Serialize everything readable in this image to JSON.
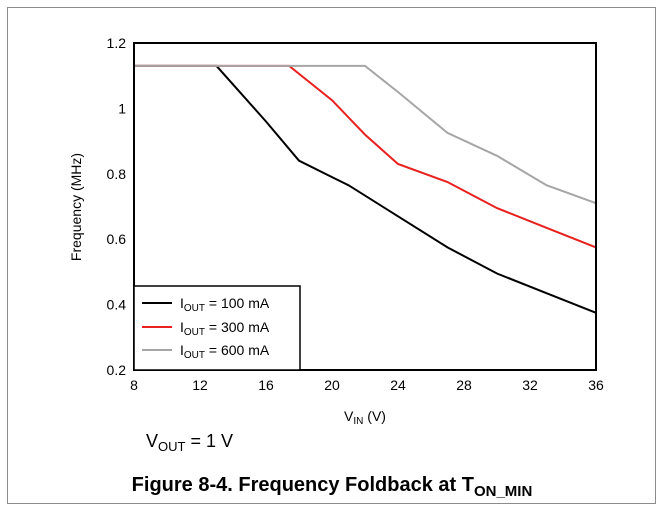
{
  "chart_data": {
    "type": "line",
    "xlabel": {
      "main": "V",
      "sub": "IN",
      "rest": " (V)"
    },
    "ylabel": "Frequency (MHz)",
    "xlim": [
      8,
      36
    ],
    "ylim": [
      0.2,
      1.2
    ],
    "xticks": [
      8,
      12,
      16,
      20,
      24,
      28,
      32,
      36
    ],
    "yticks": [
      0.2,
      0.4,
      0.6,
      0.8,
      1,
      1.2
    ],
    "ytick_labels": [
      "0.2",
      "0.4",
      "0.6",
      "0.8",
      "1",
      "1.2"
    ],
    "grid": false,
    "legend_position": "bottom-left",
    "series": [
      {
        "name": {
          "main": "I",
          "sub": "OUT",
          "rest": " = 100 mA"
        },
        "color": "#000000",
        "x": [
          8,
          13,
          16,
          18,
          20,
          21,
          24,
          27,
          30,
          33,
          36
        ],
        "y": [
          1.13,
          1.13,
          0.96,
          0.84,
          0.79,
          0.765,
          0.67,
          0.575,
          0.495,
          0.435,
          0.375
        ]
      },
      {
        "name": {
          "main": "I",
          "sub": "OUT",
          "rest": " = 300 mA"
        },
        "color": "#e8201e",
        "x": [
          8,
          17.4,
          20,
          22,
          24,
          27,
          30,
          33,
          36
        ],
        "y": [
          1.13,
          1.13,
          1.025,
          0.92,
          0.83,
          0.775,
          0.695,
          0.635,
          0.575
        ]
      },
      {
        "name": {
          "main": "I",
          "sub": "OUT",
          "rest": " = 600 mA"
        },
        "color": "#a6a6a6",
        "x": [
          8,
          22,
          24,
          27,
          30,
          33,
          36
        ],
        "y": [
          1.13,
          1.13,
          1.05,
          0.925,
          0.855,
          0.765,
          0.71
        ]
      }
    ]
  },
  "note": {
    "main": "V",
    "sub": "OUT",
    "rest": " = 1 V"
  },
  "caption": {
    "main": "Figure 8-4. Frequency Foldback at T",
    "sub": "ON_MIN"
  }
}
